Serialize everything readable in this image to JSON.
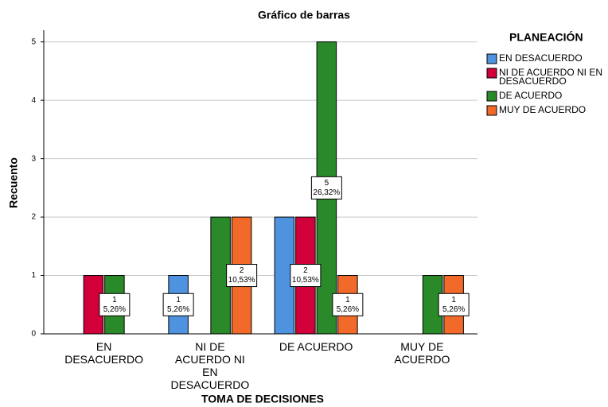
{
  "chart_data": {
    "type": "bar",
    "title": "Gráfico de barras",
    "x_label": "TOMA DE DECISIONES",
    "y_label": "Recuento",
    "legend_title": "PLANEACIÓN",
    "legend": "right",
    "grid": true,
    "categories": [
      "EN DESACUERDO",
      "NI DE ACUERDO NI EN DESACUERDO",
      "DE ACUERDO",
      "MUY DE ACUERDO"
    ],
    "series": [
      {
        "name": "EN DESACUERDO",
        "color": "#4f93e0",
        "values": [
          null,
          1,
          2,
          null
        ],
        "value_labels": [
          null,
          [
            "1",
            "5,26%"
          ],
          null,
          null
        ]
      },
      {
        "name": "NI DE ACUERDO NI EN DESACUERDO",
        "color": "#d2003a",
        "values": [
          1,
          null,
          2,
          null
        ],
        "value_labels": [
          null,
          null,
          [
            "2",
            "10,53%"
          ],
          null
        ]
      },
      {
        "name": "DE ACUERDO",
        "color": "#2a8a2a",
        "values": [
          1,
          2,
          5,
          1
        ],
        "value_labels": [
          [
            "1",
            "5,26%"
          ],
          null,
          [
            "5",
            "26,32%"
          ],
          null
        ]
      },
      {
        "name": "MUY DE ACUERDO",
        "color": "#f26a2a",
        "values": [
          null,
          2,
          1,
          1
        ],
        "value_labels": [
          null,
          [
            "2",
            "10,53%"
          ],
          [
            "1",
            "5,26%"
          ],
          [
            "1",
            "5,26%"
          ]
        ]
      }
    ],
    "ylim": [
      0,
      5.2
    ],
    "yticks": [
      0,
      1,
      2,
      3,
      4,
      5
    ]
  }
}
